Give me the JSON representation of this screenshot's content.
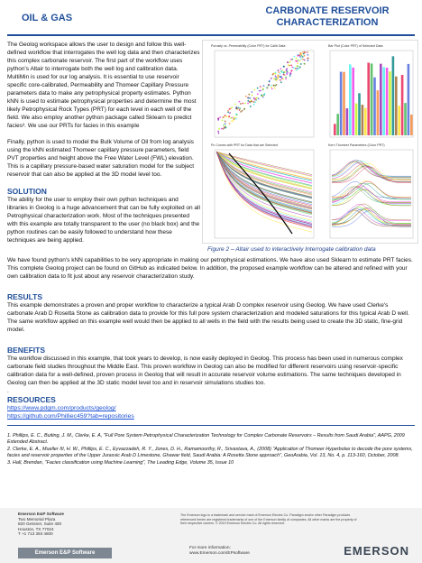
{
  "header": {
    "left": "OIL & GAS",
    "title_line1": "CARBONATE RESERVOIR",
    "title_line2": "CHARACTERIZATION"
  },
  "intro": [
    "The Geolog workspace allows the user to design and follow this well-defined workflow that interrogates the well log data and then characterizes this complex carbonate reservoir.  The first part of the workflow uses python's Altair to interrogate both the well log and calibration data.  MultiMin is used for our log analysis. It is essential to use reservoir specific core-calibrated, Permeability and Thomeer Capillary Pressure parameters data to make any petrophysical property estimates. Python kNN is used to estimate petrophysical properties and determine the most likely Petrophysical Rock Types (PRT) for each level in each well of the field. We also employ another python package called Sklearn to predict facies³. We use our PRTs for facies in this example",
    "Finally, python is used to model the Bulk Volume of Oil from log analysis using the kNN estimated Thomeer capillary pressure parameters, field PVT properties and height above the Free Water Level (FWL) elevation.  This is a capillary pressure-based water saturation model for the subject reservoir that can also be applied at the 3D model level too."
  ],
  "figure": {
    "panels": [
      "Porosity vs. Permeability (Color PRT) for Calib Data",
      "Bar Plot (Color PRT) of Selected Data",
      "Pc Curves with PRT for Data that are Selected",
      "Kern Thomeer Parameters (Color PRT)"
    ],
    "caption": "Figure 2 – Altair used to interactively Interrogate calibration data"
  },
  "solution": {
    "heading": "SOLUTION",
    "text": "The ability for the user to employ their own python techniques and libraries in Geolog is a huge advancement that can be fully exploited on all Petrophysical characterization work. Most of the techniques presented with this example are totally transparent to the user (no black box) and the python routines can be easily followed to understand how these techniques are being applied.",
    "text2": "We have found python's kNN capabilities to be very appropriate in making our petrophysical estimations. We have also used Sklearn to estimate PRT facies. This complete Geolog project can be found on GitHub as indicated below. In addition, the proposed example workflow can be altered and refined with your own calibration data to fit just about any reservoir characterization study."
  },
  "results": {
    "heading": "RESULTS",
    "text": "This example demonstrates a proven and proper workflow to characterize a typical Arab D complex reservoir using Geolog. We have used Clerke's carbonate Arab D Rosetta Stone as calibration data to provide for this full pore system characterization and modeled saturations for this typical Arab D well. The same workflow applied on this example well would then be applied to all wells in the field with the results being used to create the 3D static, fine-grid model."
  },
  "benefits": {
    "heading": "BENEFITS",
    "text": "The workflow discussed in this example, that took years to develop, is now easily deployed in Geolog.  This process has been used in numerous complex carbonate field studies throughout the Middle East. This proven workflow in Geolog can also be modified for different reservoirs using reservoir-specific calibration data for a well-defined, proven process in Geolog that will result in accurate reservoir volume estimations. The same techniques developed in Geolog can then be applied at the 3D static model level too and in reservoir simulations studies too.",
    "trailer": "."
  },
  "resources": {
    "heading": "RESOURCES",
    "links": [
      "https://www.pdgm.com/products/geolog/",
      "https://github.com/Philliec459?tab=repositories"
    ]
  },
  "references": [
    "1. Phillips, E. C., Buiting, J. M., Clerke, E. A, \"Full Pore System Petrophysical Characterization Technology for Complex Carbonate Reservoirs – Results from Saudi Arabia\", AAPG, 2009 Extended Abstract.",
    "2. Clerke, E. A., Mueller III, H. W., Phillips, E. C., Eyvazzadeh, R. Y., Jones, D. H., Ramamoorthy, R., Srivastava, A., (2008) \"Application of Thomeer Hyperbolas to decode the pore systems, facies and reservoir properties of the Upper Jurassic Arab D Limestone, Ghawar field, Saudi Arabia: A Rosetta Stone approach\", GeoArabia, Vol. 13, No. 4, p. 113-160, October, 2008.",
    "3. Hall, Brendan, \"Facies classification using Machine Learning\", The Leading Edge, Volume 35, Issue 10"
  ],
  "footer": {
    "address": [
      "Emerson E&P Software",
      "Two Memorial Plaza",
      "820 Gessner, Suite 400",
      "Houston, TX 77024",
      "T +1 713 393 4800"
    ],
    "legal": "The Emerson logo is a trademark and service mark of Emerson Electric Co. Paradigm and/or other Paradigm products referenced herein are registered trademarks of one of the Emerson family of companies. All other marks are the property of their respective owners. © 2019 Emerson Electric Co. All rights reserved.",
    "bar_left": "Emerson E&P Software",
    "more_info": "For more information:",
    "url": "www.Emerson.com/EPsoftware",
    "brand": "EMERSON"
  }
}
